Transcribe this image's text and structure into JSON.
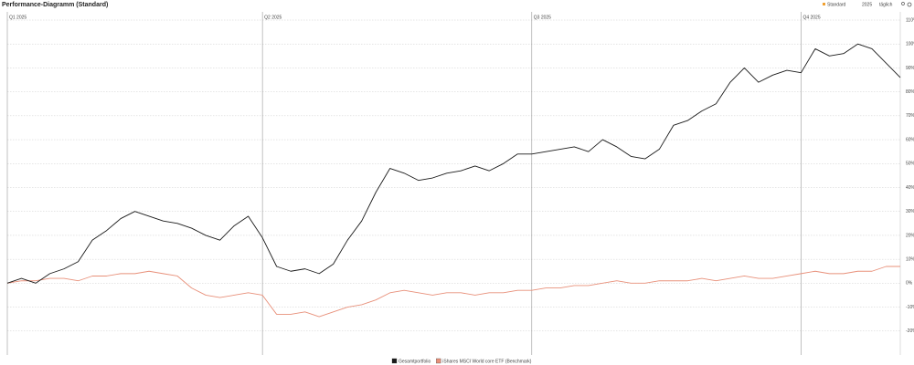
{
  "ui": {
    "view": "Standard",
    "year": "2025",
    "interval": "täglich"
  },
  "chart_data": {
    "type": "line",
    "title": "Performance-Diagramm (Standard)",
    "categories": [
      null,
      null,
      null,
      null,
      null,
      null,
      null,
      null,
      null,
      null,
      null,
      null,
      null,
      null,
      null,
      null,
      null,
      null,
      null,
      null,
      null,
      null,
      null,
      null,
      null,
      null,
      null,
      null,
      null,
      null,
      null,
      null,
      null,
      null,
      null,
      null,
      null,
      null,
      null,
      null,
      null,
      null,
      null,
      null,
      null,
      null,
      null,
      null,
      null,
      null,
      null,
      null,
      null,
      null,
      null,
      null,
      null,
      null,
      null,
      null,
      null,
      null,
      null,
      null
    ],
    "xticks": [
      {
        "value": 0,
        "label": "Q1 2025"
      },
      {
        "value": 18,
        "label": "Q2 2025"
      },
      {
        "value": 37,
        "label": "Q3 2025"
      },
      {
        "value": 56,
        "label": "Q4 2025"
      }
    ],
    "series": [
      {
        "name": "Gesamtportfolio",
        "color": "#1a1a1a",
        "values": [
          0,
          2,
          0,
          4,
          6,
          9,
          18,
          22,
          27,
          30,
          28,
          26,
          25,
          23,
          20,
          18,
          24,
          28,
          19,
          7,
          5,
          6,
          4,
          8,
          18,
          26,
          38,
          48,
          46,
          43,
          44,
          46,
          47,
          49,
          47,
          50,
          54,
          54,
          55,
          56,
          57,
          55,
          60,
          57,
          53,
          52,
          56,
          66,
          68,
          72,
          75,
          84,
          90,
          84,
          87,
          89,
          88,
          98,
          95,
          96,
          100,
          98,
          92,
          86
        ]
      },
      {
        "name": "iShares MSCI World core ETF (Benchmark)",
        "color": "#e8907a",
        "values": [
          0,
          1,
          1,
          2,
          2,
          1,
          3,
          3,
          4,
          4,
          5,
          4,
          3,
          -2,
          -5,
          -6,
          -5,
          -4,
          -5,
          -13,
          -13,
          -12,
          -14,
          -12,
          -10,
          -9,
          -7,
          -4,
          -3,
          -4,
          -5,
          -4,
          -4,
          -5,
          -4,
          -4,
          -3,
          -3,
          -2,
          -2,
          -1,
          -1,
          0,
          1,
          0,
          0,
          1,
          1,
          1,
          2,
          1,
          2,
          3,
          2,
          2,
          3,
          4,
          5,
          4,
          4,
          5,
          5,
          7,
          7
        ]
      }
    ],
    "ylim": [
      -30,
      110
    ],
    "yticks": [
      {
        "value": -20,
        "label": "-20%"
      },
      {
        "value": -10,
        "label": "-10%"
      },
      {
        "value": 0,
        "label": "0%"
      },
      {
        "value": 10,
        "label": "10%"
      },
      {
        "value": 20,
        "label": "20%"
      },
      {
        "value": 30,
        "label": "30%"
      },
      {
        "value": 40,
        "label": "40%"
      },
      {
        "value": 50,
        "label": "50%"
      },
      {
        "value": 60,
        "label": "60%"
      },
      {
        "value": 70,
        "label": "70%"
      },
      {
        "value": 80,
        "label": "80%"
      },
      {
        "value": 90,
        "label": "90%"
      },
      {
        "value": 100,
        "label": "100%"
      },
      {
        "value": 110,
        "label": "110%"
      }
    ],
    "grid": true
  }
}
